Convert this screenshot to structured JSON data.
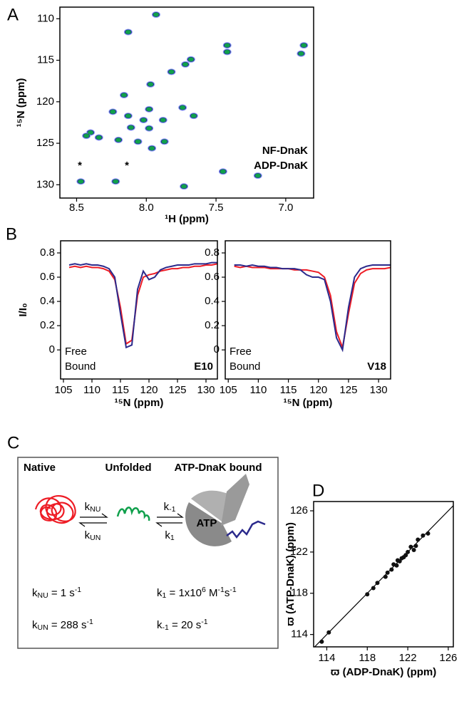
{
  "panel_labels": [
    "A",
    "B",
    "C",
    "D"
  ],
  "chart_data": [
    {
      "type": "scatter",
      "xlabel": "¹H (ppm)",
      "ylabel": "¹⁵N (ppm)",
      "xlim": [
        8.62,
        6.8
      ],
      "ylim": [
        131.6,
        108.6
      ],
      "xticks": [
        8.5,
        {
          "value": 8,
          "label": "8.0"
        },
        7.5,
        {
          "value": 7,
          "label": "7.0"
        }
      ],
      "yticks": [
        110,
        115,
        120,
        125,
        130
      ],
      "annotations": [
        "*",
        "*"
      ],
      "series": [
        {
          "name": "NF-DnaK",
          "color": "#2b2a8c",
          "x": [
            7.93,
            8.13,
            7.42,
            7.42,
            6.87,
            6.89,
            7.68,
            7.72,
            7.82,
            7.97,
            8.16,
            7.74,
            7.98,
            8.02,
            8.13,
            8.24,
            7.88,
            7.66,
            8.11,
            7.98,
            8.4,
            8.34,
            8.2,
            8.06,
            7.96,
            7.87,
            7.45,
            7.2,
            8.47,
            8.22,
            7.73,
            8.43
          ],
          "y": [
            109.5,
            111.6,
            113.2,
            114.0,
            113.2,
            114.2,
            114.9,
            115.5,
            116.4,
            117.9,
            119.2,
            120.7,
            120.9,
            122.2,
            121.7,
            121.2,
            122.2,
            121.7,
            123.1,
            123.2,
            123.7,
            124.3,
            124.6,
            124.8,
            125.6,
            124.8,
            128.4,
            128.9,
            129.6,
            129.6,
            130.2,
            124.1
          ]
        },
        {
          "name": "ADP-DnaK",
          "color": "#10a04c",
          "x": [
            7.93,
            8.13,
            7.42,
            7.42,
            6.87,
            6.89,
            7.68,
            7.72,
            7.82,
            7.97,
            8.16,
            7.74,
            7.98,
            8.02,
            8.13,
            8.24,
            7.88,
            7.66,
            8.11,
            7.98,
            8.4,
            8.34,
            8.2,
            8.06,
            7.96,
            7.87,
            7.45,
            7.2,
            8.47,
            8.22,
            7.73,
            8.43
          ],
          "y": [
            109.5,
            111.6,
            113.2,
            114.0,
            113.2,
            114.2,
            114.9,
            115.5,
            116.4,
            117.9,
            119.2,
            120.7,
            120.9,
            122.2,
            121.7,
            121.2,
            122.2,
            121.7,
            123.1,
            123.2,
            123.7,
            124.3,
            124.6,
            124.8,
            125.6,
            124.8,
            128.4,
            128.9,
            129.6,
            129.6,
            130.2,
            124.1
          ]
        }
      ]
    },
    {
      "type": "line",
      "xlabel": "¹⁵N (ppm)",
      "ylabel": "I/I₀",
      "annotation": "E10",
      "xlim": [
        104.5,
        132
      ],
      "ylim": [
        -0.24,
        0.9
      ],
      "xticks": [
        105,
        110,
        115,
        120,
        125,
        130
      ],
      "yticks": [
        0,
        0.2,
        0.4,
        0.6,
        0.8
      ],
      "x": [
        106,
        107,
        108,
        109,
        110,
        111,
        112,
        113,
        114,
        115,
        116,
        117,
        118,
        119,
        120,
        121,
        122,
        123,
        124,
        125,
        126,
        127,
        128,
        129,
        130,
        131,
        132
      ],
      "series": [
        {
          "name": "Free",
          "color": "#ee1c25",
          "values": [
            0.68,
            0.69,
            0.68,
            0.69,
            0.68,
            0.68,
            0.67,
            0.65,
            0.58,
            0.35,
            0.05,
            0.08,
            0.45,
            0.6,
            0.62,
            0.63,
            0.65,
            0.66,
            0.67,
            0.67,
            0.68,
            0.68,
            0.69,
            0.69,
            0.7,
            0.7,
            0.71
          ]
        },
        {
          "name": "Bound",
          "color": "#2b2a8c",
          "values": [
            0.7,
            0.71,
            0.7,
            0.71,
            0.7,
            0.7,
            0.69,
            0.67,
            0.6,
            0.3,
            0.02,
            0.04,
            0.5,
            0.65,
            0.58,
            0.6,
            0.66,
            0.68,
            0.69,
            0.7,
            0.7,
            0.7,
            0.71,
            0.71,
            0.71,
            0.72,
            0.72
          ]
        }
      ]
    },
    {
      "type": "line",
      "xlabel": "¹⁵N (ppm)",
      "annotation": "V18",
      "xlim": [
        104.5,
        132
      ],
      "ylim": [
        -0.24,
        0.9
      ],
      "xticks": [
        105,
        110,
        115,
        120,
        125,
        130
      ],
      "yticks": [
        0,
        0.2,
        0.4,
        0.6,
        0.8
      ],
      "x": [
        106,
        107,
        108,
        109,
        110,
        111,
        112,
        113,
        114,
        115,
        116,
        117,
        118,
        119,
        120,
        121,
        122,
        123,
        124,
        125,
        126,
        127,
        128,
        129,
        130,
        131,
        132
      ],
      "series": [
        {
          "name": "Free",
          "color": "#ee1c25",
          "values": [
            0.69,
            0.68,
            0.69,
            0.68,
            0.68,
            0.68,
            0.67,
            0.67,
            0.67,
            0.67,
            0.66,
            0.66,
            0.66,
            0.65,
            0.64,
            0.6,
            0.45,
            0.15,
            0.02,
            0.3,
            0.55,
            0.63,
            0.66,
            0.67,
            0.67,
            0.67,
            0.68
          ]
        },
        {
          "name": "Bound",
          "color": "#2b2a8c",
          "values": [
            0.7,
            0.7,
            0.69,
            0.7,
            0.69,
            0.69,
            0.68,
            0.68,
            0.67,
            0.67,
            0.67,
            0.66,
            0.62,
            0.6,
            0.6,
            0.58,
            0.4,
            0.1,
            0.0,
            0.35,
            0.6,
            0.67,
            0.69,
            0.7,
            0.7,
            0.7,
            0.7
          ]
        }
      ]
    },
    {
      "type": "scatter",
      "xlabel": "ϖ (ADP-DnaK) (ppm)",
      "ylabel": "ϖ (ATP-DnaK) (ppm)",
      "xlim": [
        112.7,
        126.5
      ],
      "ylim": [
        112.8,
        126.9
      ],
      "xticks": [
        114,
        118,
        122,
        126
      ],
      "yticks": [
        114,
        118,
        122,
        126
      ],
      "series": [
        {
          "name": "",
          "color": "#111111",
          "x": [
            113.5,
            114.2,
            118,
            118.6,
            119,
            119.8,
            120,
            120.4,
            120.6,
            120.9,
            121,
            121.2,
            121.4,
            121.6,
            121.8,
            122,
            122.3,
            122.6,
            122.8,
            123,
            123.5,
            124
          ],
          "y": [
            113.3,
            114.2,
            117.9,
            118.5,
            119,
            119.6,
            120,
            120.3,
            120.8,
            120.7,
            121.2,
            121.1,
            121.4,
            121.5,
            121.7,
            122,
            122.5,
            122.2,
            122.6,
            123.2,
            123.6,
            123.8
          ]
        }
      ]
    }
  ],
  "diagram": {
    "states": [
      "Native",
      "Unfolded",
      "ATP-DnaK bound"
    ],
    "atp": "ATP",
    "rates": {
      "forward": [
        {
          "text": "k"
        },
        {
          "sub": "NU"
        }
      ],
      "backward": [
        {
          "text": "k"
        },
        {
          "sub": "UN"
        }
      ],
      "off": [
        {
          "text": "k"
        },
        {
          "sub": "-1"
        }
      ],
      "on": [
        {
          "text": "k"
        },
        {
          "sub": "1"
        }
      ]
    },
    "equations": [
      [
        {
          "text": "k"
        },
        {
          "sub": "NU"
        },
        {
          "text": " = 1 s"
        },
        {
          "sup": "-1"
        }
      ],
      [
        {
          "text": "k"
        },
        {
          "sub": "UN"
        },
        {
          "text": " = 288 s"
        },
        {
          "sup": "-1"
        }
      ],
      [
        {
          "text": "k"
        },
        {
          "sub": "1"
        },
        {
          "text": " = 1x10"
        },
        {
          "sup": "6"
        },
        {
          "text": " M"
        },
        {
          "sup": "-1"
        },
        {
          "text": "s"
        },
        {
          "sup": "-1"
        }
      ],
      [
        {
          "text": "k"
        },
        {
          "sub": "-1"
        },
        {
          "text": " = 20 s"
        },
        {
          "sup": "-1"
        }
      ]
    ]
  }
}
